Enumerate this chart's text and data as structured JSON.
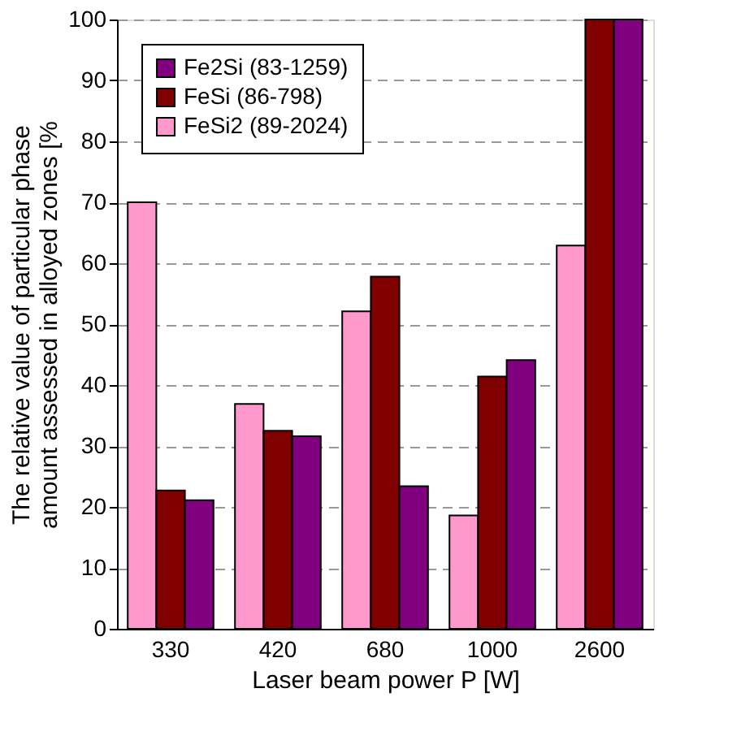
{
  "chart_data": {
    "type": "bar",
    "xlabel": "Laser beam power  P [W]",
    "ylabel": "The relative value of particular phase\namount assessed in alloyed zones [%",
    "categories": [
      "330",
      "420",
      "680",
      "1000",
      "2600"
    ],
    "series": [
      {
        "name": "FeSi2 (89-2024)",
        "color": "#ff99cc",
        "values": [
          70,
          36.9,
          52.1,
          18.6,
          62.9
        ]
      },
      {
        "name": "FeSi (86-798)",
        "color": "#800000",
        "values": [
          22.7,
          32.5,
          57.8,
          41.4,
          100
        ]
      },
      {
        "name": "Fe2Si (83-1259)",
        "color": "#800080",
        "values": [
          21.1,
          31.6,
          23.4,
          44.1,
          100
        ]
      }
    ],
    "ylim": [
      0,
      100
    ],
    "yticks": [
      0,
      10,
      20,
      30,
      40,
      50,
      60,
      70,
      80,
      90,
      100
    ],
    "grid": "y",
    "legend": "top left"
  }
}
